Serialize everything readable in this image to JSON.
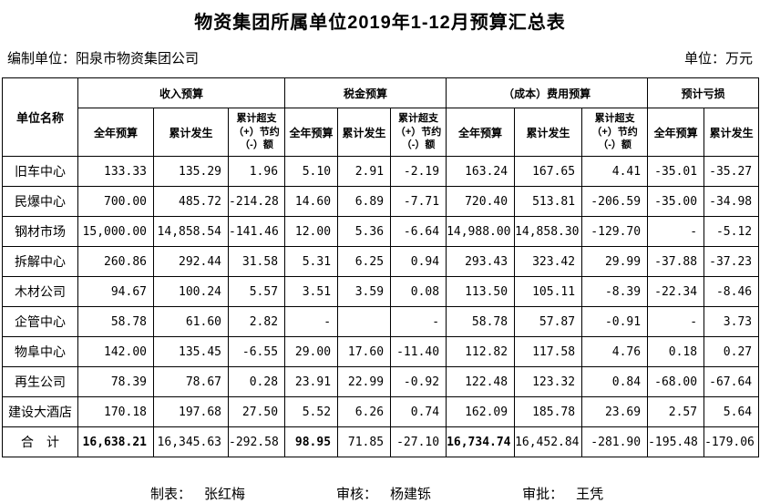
{
  "title": "物资集团所属单位2019年1-12月预算汇总表",
  "meta": {
    "prepared_by_label": "编制单位：",
    "prepared_by": "阳泉市物资集团公司",
    "unit_label": "单位：万元"
  },
  "table": {
    "corner_header": "单位名称",
    "groups": [
      {
        "label": "收入预算",
        "cols": [
          "全年预算",
          "累计发生",
          "累计超支\n（+）节约\n（-）额"
        ]
      },
      {
        "label": "税金预算",
        "cols": [
          "全年预算",
          "累计发生",
          "累计超支\n（+）节约\n（-）额"
        ]
      },
      {
        "label": "（成本）费用预算",
        "cols": [
          "全年预算",
          "累计发生",
          "累计超支\n（+）节约\n（-）额"
        ]
      },
      {
        "label": "预计亏损",
        "cols": [
          "全年预算",
          "累计发生"
        ]
      }
    ],
    "rows": [
      {
        "name": "旧车中心",
        "values": [
          "133.33",
          "135.29",
          "1.96",
          "5.10",
          "2.91",
          "-2.19",
          "163.24",
          "167.65",
          "4.41",
          "-35.01",
          "-35.27"
        ]
      },
      {
        "name": "民爆中心",
        "values": [
          "700.00",
          "485.72",
          "-214.28",
          "14.60",
          "6.89",
          "-7.71",
          "720.40",
          "513.81",
          "-206.59",
          "-35.00",
          "-34.98"
        ]
      },
      {
        "name": "钢材市场",
        "values": [
          "15,000.00",
          "14,858.54",
          "-141.46",
          "12.00",
          "5.36",
          "-6.64",
          "14,988.00",
          "14,858.30",
          "-129.70",
          "-",
          "-5.12"
        ]
      },
      {
        "name": "拆解中心",
        "values": [
          "260.86",
          "292.44",
          "31.58",
          "5.31",
          "6.25",
          "0.94",
          "293.43",
          "323.42",
          "29.99",
          "-37.88",
          "-37.23"
        ]
      },
      {
        "name": "木材公司",
        "values": [
          "94.67",
          "100.24",
          "5.57",
          "3.51",
          "3.59",
          "0.08",
          "113.50",
          "105.11",
          "-8.39",
          "-22.34",
          "-8.46"
        ]
      },
      {
        "name": "企管中心",
        "values": [
          "58.78",
          "61.60",
          "2.82",
          "-",
          "",
          "-",
          "58.78",
          "57.87",
          "-0.91",
          "-",
          "3.73"
        ]
      },
      {
        "name": "物阜中心",
        "values": [
          "142.00",
          "135.45",
          "-6.55",
          "29.00",
          "17.60",
          "-11.40",
          "112.82",
          "117.58",
          "4.76",
          "0.18",
          "0.27"
        ]
      },
      {
        "name": "再生公司",
        "values": [
          "78.39",
          "78.67",
          "0.28",
          "23.91",
          "22.99",
          "-0.92",
          "122.48",
          "123.32",
          "0.84",
          "-68.00",
          "-67.64"
        ]
      },
      {
        "name": "建设大酒店",
        "values": [
          "170.18",
          "197.68",
          "27.50",
          "5.52",
          "6.26",
          "0.74",
          "162.09",
          "185.78",
          "23.69",
          "2.57",
          "5.64"
        ]
      },
      {
        "name": "合　计",
        "is_total": true,
        "bold_cols": [
          0,
          3,
          6
        ],
        "values": [
          "16,638.21",
          "16,345.63",
          "-292.58",
          "98.95",
          "71.85",
          "-27.10",
          "16,734.74",
          "16,452.84",
          "-281.90",
          "-195.48",
          "-179.06"
        ]
      }
    ]
  },
  "footer": {
    "items": [
      {
        "label": "制表：",
        "name": "张红梅"
      },
      {
        "label": "审核：",
        "name": "杨建铄"
      },
      {
        "label": "审批：",
        "name": "王凭"
      }
    ]
  }
}
